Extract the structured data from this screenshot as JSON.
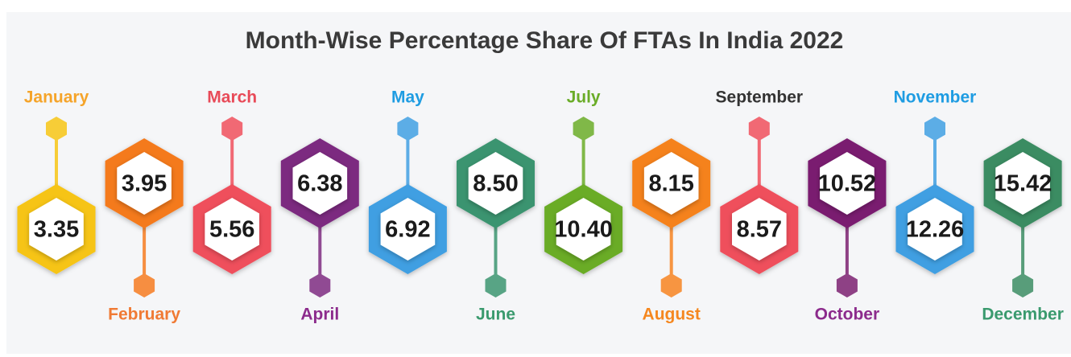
{
  "chart_data": {
    "type": "hexagon-timeline",
    "title": "Month-Wise Percentage Share Of FTAs In India 2022",
    "categories": [
      "January",
      "February",
      "March",
      "April",
      "May",
      "June",
      "July",
      "August",
      "September",
      "October",
      "November",
      "December"
    ],
    "values": [
      3.35,
      3.95,
      5.56,
      6.38,
      6.92,
      8.5,
      10.4,
      8.15,
      8.57,
      10.52,
      12.26,
      15.42
    ],
    "value_labels": [
      "3.35",
      "3.95",
      "5.56",
      "6.38",
      "6.92",
      "8.50",
      "10.40",
      "8.15",
      "8.57",
      "10.52",
      "12.26",
      "15.42"
    ],
    "colors": [
      "#f6c414",
      "#f47a1f",
      "#ef4f5c",
      "#7c2a80",
      "#3f9fe2",
      "#3b9470",
      "#6aac28",
      "#f5821f",
      "#ef4f5c",
      "#7a1f70",
      "#3f9fe2",
      "#3b8c62"
    ],
    "label_colors": [
      "#f5a42a",
      "#f07a34",
      "#e84a58",
      "#8c2b8c",
      "#1e9ce2",
      "#3a9a6e",
      "#6aac28",
      "#f5871f",
      "#333333",
      "#8c2b8c",
      "#1e9ce2",
      "#3a9a6e"
    ]
  }
}
